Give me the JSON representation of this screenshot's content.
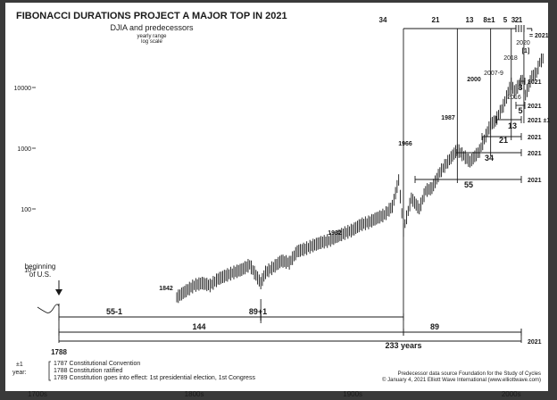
{
  "chart_data": {
    "type": "bar",
    "title": "FIBONACCI DURATIONS PROJECT A MAJOR TOP IN 2021",
    "subtitle": "DJIA and predecessors",
    "subtitle2": "yearly range",
    "subtitle3": "log scale",
    "scale": "log",
    "ylim": [
      1,
      60000
    ],
    "xlim": [
      1700,
      2030
    ],
    "y_ticks": [
      {
        "value": 10,
        "label": "10"
      },
      {
        "value": 100,
        "label": "100"
      },
      {
        "value": 1000,
        "label": "1000"
      },
      {
        "value": 10000,
        "label": "10000"
      }
    ],
    "x_ticks": [
      {
        "value": 1700,
        "label": "1700s"
      },
      {
        "value": 1800,
        "label": "1800s"
      },
      {
        "value": 1900,
        "label": "1900s"
      },
      {
        "value": 2000,
        "label": "2000s"
      }
    ],
    "series": [
      {
        "x": [
          1789,
          1795,
          1800,
          1805,
          1810,
          1815,
          1820,
          1825,
          1830,
          1835,
          1842,
          1845,
          1850,
          1855,
          1860,
          1865,
          1870,
          1875,
          1880,
          1885,
          1890,
          1895,
          1900,
          1905,
          1910,
          1915,
          1920,
          1925,
          1929,
          1932,
          1937,
          1942,
          1946,
          1950,
          1955,
          1960,
          1966,
          1970,
          1974,
          1980,
          1987,
          1990,
          1995,
          2000,
          2002,
          2007,
          2009,
          2013,
          2016,
          2018,
          2020
        ],
        "values": [
          3.5,
          4.5,
          5.5,
          6,
          5.5,
          7,
          8,
          9,
          10,
          12,
          6,
          9,
          11,
          14,
          13,
          20,
          22,
          25,
          28,
          30,
          35,
          40,
          45,
          55,
          60,
          70,
          80,
          110,
          300,
          45,
          150,
          100,
          200,
          220,
          400,
          600,
          950,
          750,
          600,
          900,
          2500,
          2800,
          5000,
          11500,
          8500,
          13500,
          7500,
          15000,
          17500,
          26000,
          30000
        ]
      }
    ],
    "origin_label": "beginning of U.S.",
    "peaks": [
      {
        "year": 1842,
        "label": "1842"
      },
      {
        "year": 1932,
        "label": "1932"
      },
      {
        "year": 1966,
        "label": "1966"
      },
      {
        "year": 1987,
        "label": "1987"
      },
      {
        "year": 2000,
        "label": "2000"
      },
      {
        "year": 2008,
        "label": "2007-9"
      },
      {
        "year": 2016,
        "label": "2016"
      },
      {
        "year": 2018,
        "label": "2018"
      },
      {
        "year": 2020,
        "label": "2020"
      },
      {
        "year": 2020,
        "label": "[1]"
      }
    ],
    "top_spans": [
      {
        "from": 1932,
        "to": 1966,
        "label": "34"
      },
      {
        "from": 1966,
        "to": 1987,
        "label": "21"
      },
      {
        "from": 1987,
        "to": 2000,
        "label": "13"
      },
      {
        "from": 2000,
        "to": 2008,
        "label": "8±1"
      },
      {
        "from": 2008,
        "to": 2013,
        "label": "5"
      },
      {
        "from": 2016,
        "to": 2019,
        "label": "3"
      },
      {
        "from": 2018,
        "to": 2020,
        "label": "2"
      },
      {
        "from": 2020,
        "to": 2021,
        "label": "1"
      }
    ],
    "top_end_label": "= 2021",
    "right_spans": [
      {
        "from": 2018,
        "to": 2021,
        "label": "3",
        "end_label": "2021"
      },
      {
        "from": 2016,
        "to": 2021,
        "label": "5",
        "end_label": "2021"
      },
      {
        "from": 2008,
        "to": 2021,
        "label": "13",
        "end_label": "2021 ±1"
      },
      {
        "from": 2000,
        "to": 2021,
        "label": "21",
        "end_label": "2021"
      },
      {
        "from": 1987,
        "to": 2021,
        "label": "34",
        "end_label": "2021"
      },
      {
        "from": 1966,
        "to": 2021,
        "label": "55",
        "end_label": "2021"
      }
    ],
    "bottom_spans": [
      {
        "from": 1788,
        "to": 1842,
        "label": "55-1"
      },
      {
        "from": 1842,
        "to": 1932,
        "label": "89+1"
      },
      {
        "from": 1788,
        "to": 1932,
        "label": "144"
      },
      {
        "from": 1932,
        "to": 2021,
        "label": "89",
        "end_label": "2021"
      }
    ],
    "total_label": "233 years",
    "start_label": "1788",
    "notes_prefix": "±1 year:",
    "notes": [
      "1787 Constitutional Convention",
      "1788 Constitution ratified",
      "1789 Constitution goes into effect: 1st presidential election, 1st Congress"
    ],
    "source_line1": "Predecessor data source Foundation for the Study of Cycles",
    "source_line2": "© January 4, 2021 Elliott Wave International (www.elliottwave.com)"
  },
  "colors": {
    "background": "#ffffff",
    "ink": "#1a1a1a",
    "frame": "#3a3a3a"
  }
}
